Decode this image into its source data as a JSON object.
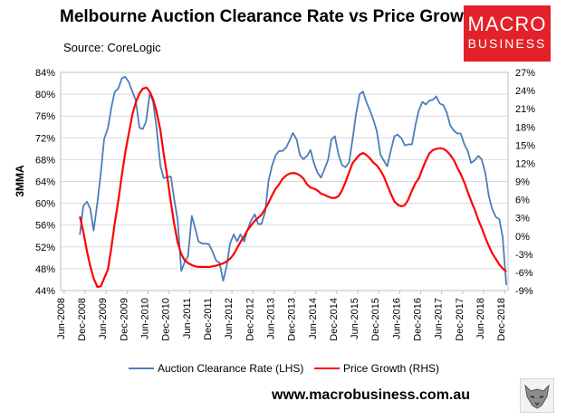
{
  "header": {
    "title": "Melbourne Auction Clearance Rate vs Price Growth",
    "source": "Source: CoreLogic"
  },
  "logo": {
    "line1": "MACRO",
    "line2": "BUSINESS"
  },
  "footer": {
    "website": "www.macrobusiness.com.au"
  },
  "colors": {
    "clearance": "#4a7ebb",
    "price": "#ff0000",
    "grid": "#d9d9d9"
  },
  "chart_data": {
    "type": "line",
    "title": "Melbourne Auction Clearance Rate vs Price Growth",
    "ylabel": "3MMA",
    "ylim": [
      44,
      84
    ],
    "y2lim": [
      -9,
      27
    ],
    "yticks": [
      44,
      48,
      52,
      56,
      60,
      64,
      68,
      72,
      76,
      80,
      84
    ],
    "y2ticks": [
      -9,
      -6,
      -3,
      0,
      3,
      6,
      9,
      12,
      15,
      18,
      21,
      24,
      27
    ],
    "ytick_labels": [
      "44%",
      "48%",
      "52%",
      "56%",
      "60%",
      "64%",
      "68%",
      "72%",
      "76%",
      "80%",
      "84%"
    ],
    "y2tick_labels": [
      "-9%",
      "-6%",
      "-3%",
      "0%",
      "3%",
      "6%",
      "9%",
      "12%",
      "15%",
      "18%",
      "21%",
      "24%",
      "27%"
    ],
    "xticks": [
      "Jun-2008",
      "Dec-2008",
      "Jun-2009",
      "Dec-2009",
      "Jun-2010",
      "Dec-2010",
      "Jun-2011",
      "Dec-2011",
      "Jun-2012",
      "Dec-2012",
      "Jun-2013",
      "Dec-2013",
      "Jun-2014",
      "Dec-2014",
      "Jun-2015",
      "Dec-2015",
      "Jun-2016",
      "Dec-2016",
      "Jun-2017",
      "Dec-2017",
      "Jun-2018",
      "Dec-2018"
    ],
    "legend": [
      "Auction Clearance Rate (LHS)",
      "Price Growth (RHS)"
    ],
    "legend_position": "bottom",
    "grid": true,
    "series": [
      {
        "name": "Auction Clearance Rate (LHS)",
        "axis": "left",
        "x": [
          2008.79,
          2008.87,
          2008.96,
          2009.04,
          2009.12,
          2009.21,
          2009.29,
          2009.37,
          2009.46,
          2009.54,
          2009.62,
          2009.71,
          2009.79,
          2009.87,
          2009.96,
          2010.04,
          2010.12,
          2010.21,
          2010.29,
          2010.37,
          2010.46,
          2010.54,
          2010.62,
          2010.71,
          2010.79,
          2010.87,
          2010.96,
          2011.04,
          2011.12,
          2011.21,
          2011.29,
          2011.37,
          2011.46,
          2011.54,
          2011.62,
          2011.71,
          2011.79,
          2011.87,
          2011.96,
          2012.04,
          2012.12,
          2012.21,
          2012.29,
          2012.37,
          2012.46,
          2012.54,
          2012.62,
          2012.71,
          2012.79,
          2012.87,
          2012.96,
          2013.04,
          2013.12,
          2013.21,
          2013.29,
          2013.37,
          2013.46,
          2013.54,
          2013.62,
          2013.71,
          2013.79,
          2013.87,
          2013.96,
          2014.04,
          2014.12,
          2014.21,
          2014.29,
          2014.37,
          2014.46,
          2014.54,
          2014.62,
          2014.71,
          2014.79,
          2014.87,
          2014.96,
          2015.04,
          2015.12,
          2015.21,
          2015.29,
          2015.37,
          2015.46,
          2015.54,
          2015.62,
          2015.71,
          2015.79,
          2015.87,
          2015.96,
          2016.04,
          2016.12,
          2016.21,
          2016.29,
          2016.37,
          2016.46,
          2016.54,
          2016.62,
          2016.71,
          2016.79,
          2016.87,
          2016.96,
          2017.04,
          2017.12,
          2017.21,
          2017.29,
          2017.37,
          2017.46,
          2017.54,
          2017.62,
          2017.71,
          2017.79,
          2017.87,
          2017.96,
          2018.04,
          2018.12,
          2018.21,
          2018.29,
          2018.37,
          2018.46,
          2018.54,
          2018.62,
          2018.71,
          2018.79,
          2018.87,
          2018.96
        ],
        "values": [
          54.2,
          59.5,
          60.3,
          59.0,
          55.0,
          60.2,
          65.5,
          71.8,
          73.8,
          77.5,
          80.4,
          81.1,
          82.9,
          83.2,
          82.2,
          80.5,
          79.0,
          73.9,
          73.6,
          75.0,
          80.3,
          78.5,
          73.8,
          66.9,
          64.6,
          64.8,
          64.9,
          60.7,
          57.0,
          47.6,
          49.2,
          50.3,
          57.7,
          55.4,
          53.0,
          52.6,
          52.6,
          52.5,
          51.0,
          49.5,
          49.1,
          45.8,
          48.5,
          52.6,
          54.3,
          53.0,
          54.3,
          53.0,
          55.2,
          56.8,
          58.0,
          56.2,
          56.2,
          58.5,
          64.2,
          66.8,
          68.8,
          69.6,
          69.6,
          70.2,
          71.5,
          72.9,
          71.7,
          68.8,
          68.1,
          68.7,
          69.8,
          67.4,
          65.6,
          64.7,
          66.2,
          68.0,
          71.7,
          72.3,
          68.9,
          67.0,
          66.6,
          67.5,
          71.6,
          76.1,
          80.0,
          80.5,
          78.6,
          77.0,
          75.3,
          73.3,
          68.9,
          67.8,
          66.8,
          69.8,
          72.3,
          72.6,
          71.9,
          70.6,
          70.8,
          70.8,
          74.3,
          77.0,
          78.6,
          78.1,
          78.8,
          79.0,
          79.6,
          78.3,
          78.0,
          76.6,
          74.3,
          73.3,
          72.8,
          72.8,
          70.8,
          69.6,
          67.4,
          67.9,
          68.7,
          68.1,
          65.5,
          61.4,
          59.0,
          57.5,
          57.1,
          53.9,
          45.0
        ]
      },
      {
        "name": "Price Growth (RHS)",
        "axis": "right",
        "x": [
          2008.79,
          2008.88,
          2008.96,
          2009.04,
          2009.12,
          2009.21,
          2009.29,
          2009.37,
          2009.46,
          2009.54,
          2009.62,
          2009.71,
          2009.79,
          2009.88,
          2009.96,
          2010.04,
          2010.12,
          2010.21,
          2010.29,
          2010.38,
          2010.46,
          2010.54,
          2010.62,
          2010.71,
          2010.79,
          2010.88,
          2010.96,
          2011.04,
          2011.12,
          2011.21,
          2011.29,
          2011.38,
          2011.46,
          2011.54,
          2011.62,
          2011.71,
          2011.79,
          2011.88,
          2011.96,
          2012.04,
          2012.12,
          2012.21,
          2012.29,
          2012.38,
          2012.46,
          2012.54,
          2012.62,
          2012.71,
          2012.79,
          2012.88,
          2012.96,
          2013.04,
          2013.12,
          2013.21,
          2013.29,
          2013.38,
          2013.46,
          2013.54,
          2013.62,
          2013.71,
          2013.79,
          2013.88,
          2013.96,
          2014.04,
          2014.12,
          2014.21,
          2014.29,
          2014.38,
          2014.46,
          2014.54,
          2014.62,
          2014.71,
          2014.79,
          2014.88,
          2014.96,
          2015.04,
          2015.12,
          2015.21,
          2015.29,
          2015.38,
          2015.46,
          2015.54,
          2015.62,
          2015.71,
          2015.79,
          2015.88,
          2015.96,
          2016.04,
          2016.12,
          2016.21,
          2016.29,
          2016.38,
          2016.46,
          2016.54,
          2016.62,
          2016.71,
          2016.79,
          2016.88,
          2016.96,
          2017.04,
          2017.12,
          2017.21,
          2017.29,
          2017.38,
          2017.46,
          2017.54,
          2017.62,
          2017.71,
          2017.79,
          2017.88,
          2017.96,
          2018.04,
          2018.12,
          2018.21,
          2018.29,
          2018.38,
          2018.46,
          2018.54,
          2018.62,
          2018.71,
          2018.79,
          2018.88,
          2018.96
        ],
        "values": [
          3.2,
          0.5,
          -2.5,
          -5.0,
          -7.0,
          -8.4,
          -8.3,
          -7.0,
          -5.5,
          -2.0,
          2.0,
          6.0,
          10.0,
          14.0,
          17.0,
          20.0,
          22.0,
          23.5,
          24.3,
          24.5,
          23.8,
          22.5,
          20.5,
          17.5,
          13.5,
          9.5,
          5.5,
          2.0,
          -1.0,
          -3.0,
          -4.0,
          -4.5,
          -4.8,
          -5.0,
          -5.1,
          -5.1,
          -5.1,
          -5.1,
          -5.0,
          -4.9,
          -4.7,
          -4.5,
          -4.2,
          -3.7,
          -3.0,
          -2.0,
          -1.0,
          0.0,
          1.0,
          1.8,
          2.5,
          3.0,
          3.5,
          4.5,
          5.5,
          6.8,
          7.8,
          8.5,
          9.4,
          10.0,
          10.3,
          10.4,
          10.3,
          10.0,
          9.5,
          8.5,
          8.0,
          7.8,
          7.5,
          7.0,
          6.8,
          6.5,
          6.3,
          6.3,
          6.6,
          7.5,
          8.8,
          10.5,
          12.0,
          12.8,
          13.4,
          13.7,
          13.4,
          12.8,
          12.1,
          11.6,
          10.8,
          9.8,
          8.4,
          6.9,
          5.7,
          5.1,
          4.9,
          5.1,
          6.0,
          7.5,
          8.7,
          9.6,
          11.1,
          12.4,
          13.6,
          14.2,
          14.4,
          14.5,
          14.4,
          14.0,
          13.4,
          12.5,
          11.3,
          10.1,
          8.8,
          7.3,
          5.8,
          4.3,
          2.7,
          1.2,
          -0.3,
          -1.6,
          -2.8,
          -3.8,
          -4.7,
          -5.4,
          -5.9
        ]
      }
    ]
  }
}
